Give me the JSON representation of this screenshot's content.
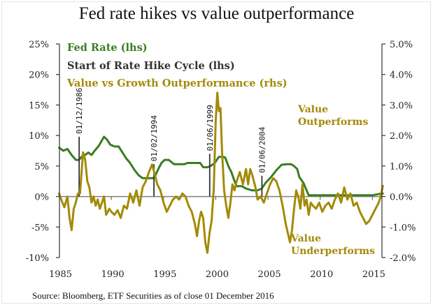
{
  "chart_data": {
    "type": "line",
    "title": "Fed rate hikes vs value outperformance",
    "source": "Source: Bloomberg, ETF Securities as of close 01 December 2016",
    "x_axis": {
      "min": 1985,
      "max": 2016,
      "ticks": [
        1985,
        1990,
        1995,
        2000,
        2005,
        2010,
        2015
      ],
      "tick_labels": [
        "1985",
        "1990",
        "1995",
        "2000",
        "2005",
        "2010",
        "2015"
      ]
    },
    "y_left": {
      "min": -10,
      "max": 25,
      "ticks": [
        -10,
        -5,
        0,
        5,
        10,
        15,
        20,
        25
      ],
      "tick_labels": [
        "-10%",
        "-5%",
        "0%",
        "5%",
        "10%",
        "15%",
        "20%",
        "25%"
      ]
    },
    "y_right": {
      "min": -2.0,
      "max": 5.0,
      "ticks": [
        -2,
        -1,
        0,
        1,
        2,
        3,
        4,
        5
      ],
      "tick_labels": [
        "-2.0%",
        "-1.0%",
        "0.0%",
        "1.0%",
        "2.0%",
        "3.0%",
        "4.0%",
        "5.0%"
      ]
    },
    "legend": [
      {
        "label": "Fed Rate (lhs)",
        "color": "#3a7d22"
      },
      {
        "label": "Start of Rate Hike Cycle (lhs)",
        "color": "#333333"
      },
      {
        "label": "Value vs Growth Outperformance (rhs)",
        "color": "#a38a07"
      }
    ],
    "annotations": [
      {
        "text": [
          "Value",
          "Outperforms"
        ],
        "color": "#a38a07"
      },
      {
        "text": [
          "Value",
          "Underperforms"
        ],
        "color": "#a38a07"
      }
    ],
    "hike_cycles": [
      {
        "date": "01/12/1986",
        "x": 1986.92,
        "value": 9.8
      },
      {
        "date": "01/02/1994",
        "x": 1994.08,
        "value": 5.3
      },
      {
        "date": "01/06/1999",
        "x": 1999.42,
        "value": 7.0
      },
      {
        "date": "01/06/2004",
        "x": 2004.42,
        "value": 3.4
      }
    ],
    "series": [
      {
        "name": "Fed Rate (lhs)",
        "axis": "left",
        "color": "#3a7d22",
        "x": [
          1985.0,
          1985.4,
          1985.8,
          1986.2,
          1986.6,
          1986.9,
          1987.2,
          1987.5,
          1987.8,
          1988.1,
          1988.4,
          1988.8,
          1989.1,
          1989.3,
          1989.6,
          1989.9,
          1990.3,
          1990.7,
          1991.0,
          1991.4,
          1991.8,
          1992.2,
          1992.6,
          1993.0,
          1993.5,
          1994.0,
          1994.2,
          1994.5,
          1994.8,
          1995.1,
          1995.5,
          1996.0,
          1996.5,
          1997.0,
          1997.3,
          1998.0,
          1998.5,
          1998.8,
          1999.2,
          1999.5,
          1999.9,
          2000.3,
          2000.6,
          2000.9,
          2001.2,
          2001.5,
          2001.8,
          2002.0,
          2002.5,
          2002.9,
          2003.5,
          2004.0,
          2004.4,
          2004.8,
          2005.3,
          2005.8,
          2006.3,
          2006.8,
          2007.2,
          2007.5,
          2007.8,
          2008.0,
          2008.4,
          2008.9,
          2009.5,
          2010.0,
          2011.0,
          2012.0,
          2013.0,
          2014.0,
          2015.0,
          2015.9,
          2016.0
        ],
        "values": [
          8.0,
          7.5,
          7.8,
          6.8,
          6.0,
          6.0,
          6.6,
          6.8,
          7.2,
          6.8,
          7.5,
          8.3,
          9.2,
          9.8,
          9.3,
          8.5,
          8.2,
          8.2,
          7.4,
          6.3,
          5.5,
          4.4,
          3.5,
          3.0,
          3.0,
          3.0,
          3.4,
          4.5,
          5.5,
          6.0,
          6.0,
          5.3,
          5.3,
          5.3,
          5.5,
          5.5,
          5.5,
          4.8,
          4.8,
          5.0,
          5.5,
          6.5,
          6.5,
          6.4,
          5.0,
          4.0,
          2.5,
          1.7,
          1.7,
          1.3,
          1.0,
          1.0,
          1.3,
          2.3,
          3.2,
          4.3,
          5.2,
          5.3,
          5.3,
          5.0,
          4.5,
          3.2,
          2.2,
          0.2,
          0.2,
          0.2,
          0.2,
          0.2,
          0.2,
          0.2,
          0.2,
          0.5,
          0.5
        ]
      },
      {
        "name": "Value vs Growth Outperformance (rhs)",
        "axis": "right",
        "color": "#a38a07",
        "x": [
          1985.0,
          1985.2,
          1985.5,
          1985.8,
          1986.0,
          1986.2,
          1986.4,
          1986.6,
          1986.8,
          1987.0,
          1987.2,
          1987.3,
          1987.5,
          1987.7,
          1987.9,
          1988.1,
          1988.3,
          1988.5,
          1988.7,
          1988.9,
          1989.1,
          1989.3,
          1989.5,
          1989.8,
          1990.0,
          1990.3,
          1990.6,
          1990.9,
          1991.2,
          1991.5,
          1991.8,
          1992.1,
          1992.4,
          1992.7,
          1993.0,
          1993.3,
          1993.6,
          1993.9,
          1994.1,
          1994.4,
          1994.7,
          1995.0,
          1995.3,
          1995.6,
          1995.9,
          1996.2,
          1996.5,
          1996.8,
          1997.1,
          1997.4,
          1997.7,
          1998.0,
          1998.2,
          1998.4,
          1998.6,
          1998.8,
          1999.0,
          1999.2,
          1999.4,
          1999.6,
          1999.8,
          2000.0,
          2000.15,
          2000.3,
          2000.45,
          2000.6,
          2000.8,
          2001.0,
          2001.2,
          2001.4,
          2001.6,
          2001.8,
          2002.0,
          2002.3,
          2002.6,
          2002.9,
          2003.1,
          2003.3,
          2003.5,
          2003.8,
          2004.0,
          2004.3,
          2004.6,
          2004.9,
          2005.2,
          2005.5,
          2005.8,
          2006.1,
          2006.4,
          2006.7,
          2006.9,
          2007.1,
          2007.3,
          2007.5,
          2007.7,
          2007.9,
          2008.1,
          2008.3,
          2008.5,
          2008.7,
          2008.9,
          2009.1,
          2009.3,
          2009.6,
          2009.9,
          2010.2,
          2010.5,
          2010.8,
          2011.1,
          2011.4,
          2011.7,
          2012.0,
          2012.3,
          2012.6,
          2012.9,
          2013.2,
          2013.5,
          2013.8,
          2014.1,
          2014.4,
          2014.7,
          2015.0,
          2015.3,
          2015.6,
          2015.8,
          2016.0
        ],
        "values": [
          0.1,
          -0.1,
          -0.35,
          0.0,
          -0.7,
          -1.1,
          -0.4,
          -0.2,
          0.1,
          0.1,
          1.0,
          1.45,
          1.2,
          0.5,
          0.3,
          -0.2,
          0.0,
          -0.3,
          -0.1,
          -0.4,
          -0.2,
          0.0,
          -0.6,
          -0.4,
          -0.5,
          -0.6,
          -0.45,
          -0.7,
          -0.3,
          -0.4,
          0.1,
          -0.2,
          0.2,
          -0.3,
          0.3,
          0.5,
          0.8,
          1.05,
          0.8,
          0.4,
          0.2,
          -0.2,
          -0.5,
          -0.3,
          -0.1,
          0.0,
          -0.1,
          0.1,
          0.0,
          -0.3,
          -0.5,
          -0.9,
          -1.3,
          -0.8,
          -0.5,
          -0.7,
          -1.5,
          -1.85,
          -1.2,
          -0.8,
          0.2,
          2.5,
          3.4,
          2.8,
          2.9,
          1.5,
          0.2,
          -0.3,
          -0.7,
          -0.2,
          0.4,
          0.2,
          0.5,
          0.8,
          0.4,
          0.9,
          0.4,
          0.9,
          0.7,
          0.3,
          -0.1,
          0.0,
          -0.2,
          0.1,
          0.4,
          0.6,
          0.5,
          0.2,
          -0.3,
          -0.9,
          -1.2,
          -1.5,
          -1.1,
          -0.4,
          0.2,
          0.0,
          -0.4,
          0.4,
          -0.3,
          -0.1,
          -0.6,
          -0.2,
          -0.3,
          -0.4,
          -0.2,
          -0.5,
          -0.3,
          -0.2,
          -0.4,
          -0.1,
          0.1,
          -0.2,
          0.3,
          -0.1,
          0.1,
          -0.3,
          -0.2,
          -0.5,
          -0.7,
          -0.9,
          -0.8,
          -0.6,
          -0.4,
          -0.2,
          0.0,
          0.35
        ]
      }
    ]
  }
}
